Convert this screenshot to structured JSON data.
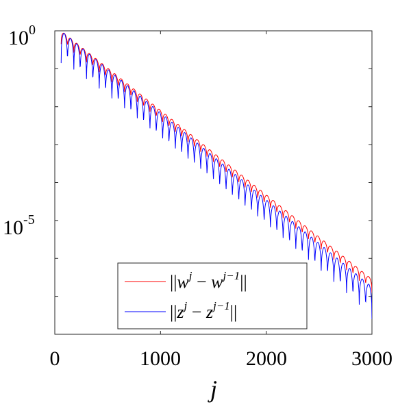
{
  "chart_data": {
    "type": "line",
    "xlabel": "j",
    "xlim": [
      0,
      3000
    ],
    "ylim_log10": [
      -8,
      0
    ],
    "yscale": "log",
    "grid": false,
    "legend_placement": "bottom-right",
    "x_ticks": [
      {
        "value": 0,
        "label": "0"
      },
      {
        "value": 1000,
        "label": "1000"
      },
      {
        "value": 2000,
        "label": "2000"
      },
      {
        "value": 3000,
        "label": "3000"
      }
    ],
    "y_ticks": [
      {
        "log10": 0,
        "base": "10",
        "exp": "0"
      },
      {
        "log10": -5,
        "base": "10",
        "exp": "-5"
      }
    ],
    "series": [
      {
        "name": "||w^j − w^{j−1}||",
        "color": "#ff0000",
        "x_start": 60,
        "x_end": 3000,
        "start_log10": 0.0,
        "end_log10": -6.55,
        "oscillation_period": 60,
        "dip_depth_log10": 0.35
      },
      {
        "name": "||z^j − z^{j−1}||",
        "color": "#0000ff",
        "x_start": 60,
        "x_end": 3000,
        "start_log10": 0.0,
        "end_log10": -6.75,
        "oscillation_period": 60,
        "dip_depth_log10": 0.85
      }
    ]
  }
}
